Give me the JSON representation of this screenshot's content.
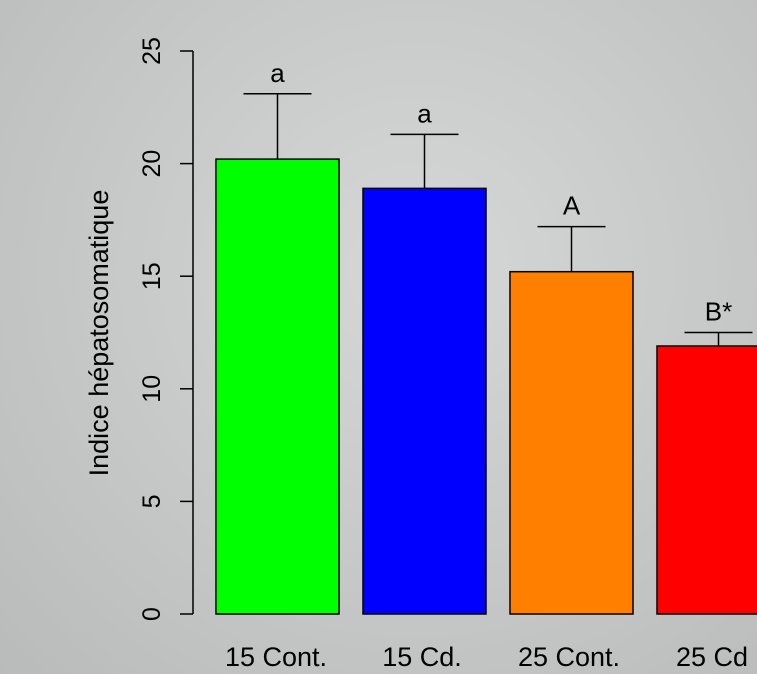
{
  "chart_data": {
    "type": "bar",
    "categories": [
      "15 Cont.",
      "15 Cd.",
      "25 Cont.",
      "25 Cd"
    ],
    "values": [
      20.2,
      18.9,
      15.2,
      11.9
    ],
    "error_upper": [
      23.1,
      21.3,
      17.2,
      12.5
    ],
    "annotations": [
      "a",
      "a",
      "A",
      "B*"
    ],
    "colors": [
      "#00ff00",
      "#0000ff",
      "#ff8000",
      "#ff0000"
    ],
    "title": "",
    "xlabel": "",
    "ylabel": "Indice hépatosomatique",
    "ylim": [
      0,
      25
    ],
    "yticks": [
      0,
      5,
      10,
      15,
      20,
      25
    ],
    "grid": false
  }
}
